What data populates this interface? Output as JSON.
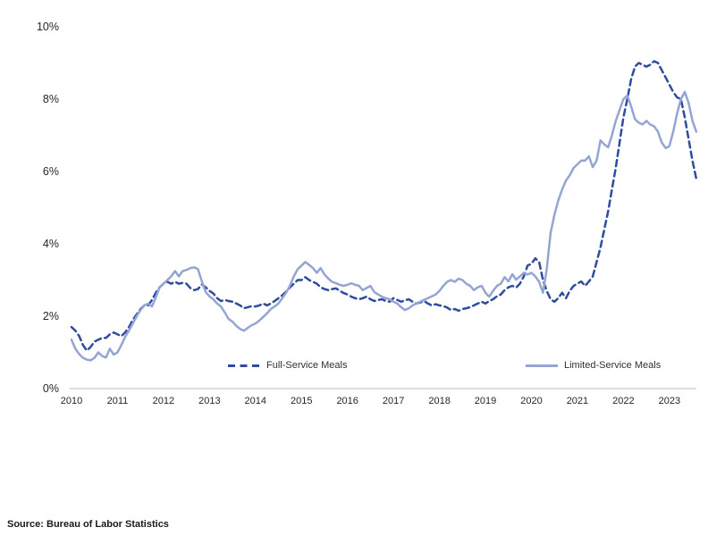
{
  "source_note": "Source: Bureau of Labor Statistics",
  "colors": {
    "full_service": "#2F4C9E",
    "limited_service": "#95A5D3",
    "axis_line": "#C9C9C9",
    "label_text": "#262626"
  },
  "chart_data": {
    "type": "line",
    "title": "",
    "x_frequency": "monthly",
    "x_start": "2010-01",
    "x_end": "2023-08",
    "x_tick_labels": [
      "2010",
      "2011",
      "2012",
      "2013",
      "2014",
      "2015",
      "2016",
      "2017",
      "2018",
      "2019",
      "2020",
      "2021",
      "2022",
      "2023"
    ],
    "y_ticks": [
      0,
      2,
      4,
      6,
      8,
      10
    ],
    "y_tick_labels": [
      "0%",
      "2%",
      "4%",
      "6%",
      "8%",
      "10%"
    ],
    "ylim": [
      0,
      10
    ],
    "grid": false,
    "legend_position": "inside-bottom",
    "series": [
      {
        "name": "Full-Service Meals",
        "style": "dashed",
        "color": "#2F4C9E",
        "values": [
          1.7,
          1.6,
          1.45,
          1.2,
          1.05,
          1.15,
          1.3,
          1.35,
          1.4,
          1.4,
          1.5,
          1.55,
          1.5,
          1.45,
          1.55,
          1.7,
          1.9,
          2.05,
          2.2,
          2.3,
          2.3,
          2.45,
          2.65,
          2.8,
          2.9,
          2.95,
          2.9,
          2.95,
          2.9,
          2.92,
          2.9,
          2.78,
          2.72,
          2.75,
          2.88,
          2.8,
          2.7,
          2.63,
          2.5,
          2.42,
          2.45,
          2.42,
          2.4,
          2.35,
          2.3,
          2.22,
          2.25,
          2.28,
          2.27,
          2.3,
          2.35,
          2.3,
          2.35,
          2.42,
          2.5,
          2.58,
          2.68,
          2.8,
          2.9,
          3.0,
          3.0,
          3.08,
          3.0,
          2.95,
          2.9,
          2.8,
          2.75,
          2.72,
          2.75,
          2.77,
          2.7,
          2.64,
          2.6,
          2.54,
          2.5,
          2.47,
          2.5,
          2.54,
          2.47,
          2.42,
          2.45,
          2.47,
          2.42,
          2.4,
          2.5,
          2.45,
          2.4,
          2.44,
          2.47,
          2.4,
          2.35,
          2.38,
          2.42,
          2.35,
          2.3,
          2.33,
          2.3,
          2.28,
          2.24,
          2.17,
          2.2,
          2.15,
          2.2,
          2.22,
          2.25,
          2.3,
          2.35,
          2.4,
          2.35,
          2.42,
          2.47,
          2.55,
          2.6,
          2.72,
          2.8,
          2.84,
          2.79,
          2.9,
          3.1,
          3.4,
          3.45,
          3.6,
          3.5,
          3.0,
          2.7,
          2.47,
          2.4,
          2.5,
          2.65,
          2.5,
          2.7,
          2.84,
          2.9,
          2.96,
          2.84,
          2.96,
          3.1,
          3.5,
          3.9,
          4.4,
          4.9,
          5.5,
          6.1,
          6.8,
          7.5,
          8.0,
          8.55,
          8.9,
          9.0,
          8.95,
          8.9,
          8.95,
          9.05,
          9.0,
          8.8,
          8.6,
          8.4,
          8.2,
          8.05,
          8.0,
          7.5,
          6.9,
          6.3,
          5.8
        ]
      },
      {
        "name": "Limited-Service Meals",
        "style": "solid",
        "color": "#95A5D3",
        "values": [
          1.35,
          1.1,
          0.95,
          0.85,
          0.8,
          0.78,
          0.85,
          1.0,
          0.9,
          0.86,
          1.1,
          0.94,
          1.0,
          1.2,
          1.43,
          1.6,
          1.8,
          2.0,
          2.17,
          2.3,
          2.35,
          2.27,
          2.52,
          2.8,
          2.9,
          3.0,
          3.1,
          3.25,
          3.1,
          3.25,
          3.28,
          3.33,
          3.35,
          3.3,
          2.96,
          2.67,
          2.55,
          2.47,
          2.35,
          2.27,
          2.1,
          1.92,
          1.85,
          1.73,
          1.65,
          1.6,
          1.68,
          1.75,
          1.8,
          1.88,
          1.98,
          2.08,
          2.2,
          2.27,
          2.35,
          2.5,
          2.65,
          2.85,
          3.1,
          3.3,
          3.4,
          3.5,
          3.42,
          3.33,
          3.2,
          3.33,
          3.15,
          3.04,
          2.95,
          2.91,
          2.87,
          2.84,
          2.87,
          2.91,
          2.87,
          2.84,
          2.72,
          2.78,
          2.84,
          2.67,
          2.6,
          2.54,
          2.5,
          2.47,
          2.4,
          2.35,
          2.25,
          2.17,
          2.22,
          2.3,
          2.35,
          2.4,
          2.45,
          2.5,
          2.55,
          2.6,
          2.7,
          2.84,
          2.95,
          3.0,
          2.95,
          3.04,
          3.0,
          2.9,
          2.84,
          2.72,
          2.8,
          2.84,
          2.65,
          2.54,
          2.7,
          2.84,
          2.9,
          3.08,
          2.96,
          3.16,
          3.01,
          3.1,
          3.2,
          3.15,
          3.2,
          3.1,
          2.95,
          2.65,
          3.3,
          4.3,
          4.8,
          5.2,
          5.5,
          5.75,
          5.9,
          6.1,
          6.2,
          6.3,
          6.3,
          6.42,
          6.12,
          6.3,
          6.86,
          6.75,
          6.67,
          7.0,
          7.4,
          7.7,
          8.0,
          8.1,
          7.8,
          7.45,
          7.35,
          7.3,
          7.4,
          7.3,
          7.25,
          7.1,
          6.8,
          6.65,
          6.7,
          7.1,
          7.6,
          8.0,
          8.2,
          7.9,
          7.4,
          7.1
        ]
      }
    ]
  }
}
